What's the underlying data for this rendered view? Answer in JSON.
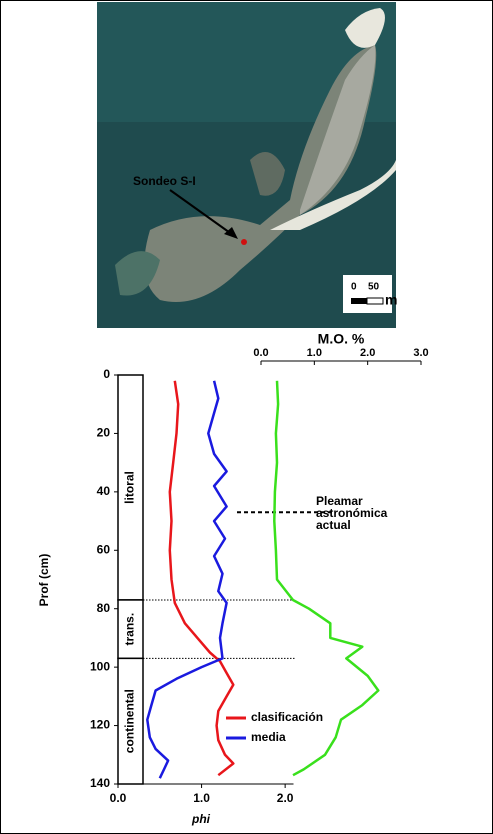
{
  "map": {
    "label": "Sondeo S-I",
    "scale_labels": [
      "0",
      "50"
    ],
    "scale_unit": "m"
  },
  "chart_data": {
    "type": "line",
    "ylabel": "Prof (cm)",
    "xlabel": "phi",
    "x2label": "M.O. %",
    "ylim": [
      0,
      140
    ],
    "yticks": [
      0,
      20,
      40,
      60,
      80,
      100,
      120,
      140
    ],
    "xlim": [
      0,
      2.1
    ],
    "xticks": [
      {
        "value": 0,
        "label": "0.0"
      },
      {
        "value": 1,
        "label": "1.0"
      },
      {
        "value": 2,
        "label": "2.0"
      }
    ],
    "x2lim": [
      0,
      3.0
    ],
    "x2ticks": [
      {
        "value": 0,
        "label": "0.0"
      },
      {
        "value": 1,
        "label": "1.0"
      },
      {
        "value": 2,
        "label": "2.0"
      },
      {
        "value": 3,
        "label": "3.0"
      }
    ],
    "units": [
      {
        "label": "litoral",
        "top": 0,
        "bottom": 77
      },
      {
        "label": "trans.",
        "top": 77,
        "bottom": 97
      },
      {
        "label": "continental",
        "top": 97,
        "bottom": 140
      }
    ],
    "annotation": {
      "lines": [
        "Pleamar",
        "astronómica",
        "actual"
      ],
      "depth": 47
    },
    "series": [
      {
        "name": "clasificación",
        "color": "#e8161b",
        "depth": [
          2,
          10,
          20,
          30,
          40,
          50,
          60,
          70,
          78,
          85,
          90,
          95,
          98,
          102,
          106,
          110,
          115,
          120,
          125,
          130,
          133,
          137
        ],
        "values": [
          0.68,
          0.72,
          0.7,
          0.66,
          0.62,
          0.64,
          0.62,
          0.64,
          0.68,
          0.8,
          0.95,
          1.1,
          1.22,
          1.3,
          1.38,
          1.3,
          1.2,
          1.18,
          1.2,
          1.28,
          1.38,
          1.2
        ]
      },
      {
        "name": "media",
        "color": "#1a1adf",
        "depth": [
          2,
          8,
          13,
          20,
          27,
          33,
          38,
          45,
          50,
          56,
          62,
          68,
          74,
          78,
          85,
          90,
          97,
          100,
          104,
          108,
          113,
          118,
          124,
          128,
          132,
          135,
          138
        ],
        "values": [
          1.15,
          1.2,
          1.15,
          1.08,
          1.15,
          1.3,
          1.15,
          1.3,
          1.15,
          1.28,
          1.15,
          1.25,
          1.2,
          1.3,
          1.25,
          1.22,
          1.25,
          1.0,
          0.7,
          0.45,
          0.4,
          0.35,
          0.38,
          0.45,
          0.6,
          0.55,
          0.5
        ]
      },
      {
        "color": "#39e01c",
        "axis": "x2",
        "depth": [
          2,
          10,
          20,
          30,
          40,
          50,
          60,
          70,
          77,
          80,
          85,
          90,
          93,
          97,
          103,
          108,
          113,
          118,
          124,
          130,
          135,
          137
        ],
        "values": [
          0.3,
          0.32,
          0.28,
          0.3,
          0.26,
          0.25,
          0.28,
          0.3,
          0.6,
          0.9,
          1.3,
          1.3,
          1.9,
          1.6,
          2.0,
          2.2,
          1.9,
          1.5,
          1.4,
          1.2,
          0.8,
          0.6
        ]
      }
    ]
  }
}
